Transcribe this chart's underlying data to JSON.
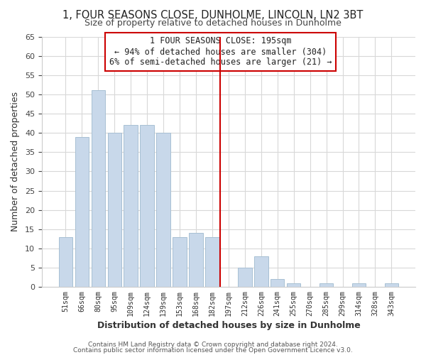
{
  "title": "1, FOUR SEASONS CLOSE, DUNHOLME, LINCOLN, LN2 3BT",
  "subtitle": "Size of property relative to detached houses in Dunholme",
  "xlabel": "Distribution of detached houses by size in Dunholme",
  "ylabel": "Number of detached properties",
  "bar_labels": [
    "51sqm",
    "66sqm",
    "80sqm",
    "95sqm",
    "109sqm",
    "124sqm",
    "139sqm",
    "153sqm",
    "168sqm",
    "182sqm",
    "197sqm",
    "212sqm",
    "226sqm",
    "241sqm",
    "255sqm",
    "270sqm",
    "285sqm",
    "299sqm",
    "314sqm",
    "328sqm",
    "343sqm"
  ],
  "bar_values": [
    13,
    39,
    51,
    40,
    42,
    42,
    40,
    13,
    14,
    13,
    0,
    5,
    8,
    2,
    1,
    0,
    1,
    0,
    1,
    0,
    1
  ],
  "bar_color": "#c8d8ea",
  "bar_edge_color": "#a8c0d4",
  "ylim": [
    0,
    65
  ],
  "yticks": [
    0,
    5,
    10,
    15,
    20,
    25,
    30,
    35,
    40,
    45,
    50,
    55,
    60,
    65
  ],
  "vline_index": 10,
  "vline_color": "#cc0000",
  "annotation_title": "1 FOUR SEASONS CLOSE: 195sqm",
  "annotation_line1": "← 94% of detached houses are smaller (304)",
  "annotation_line2": "6% of semi-detached houses are larger (21) →",
  "annotation_box_color": "#ffffff",
  "annotation_box_edge": "#cc0000",
  "footer1": "Contains HM Land Registry data © Crown copyright and database right 2024.",
  "footer2": "Contains public sector information licensed under the Open Government Licence v3.0.",
  "bg_color": "#ffffff",
  "grid_color": "#d8d8d8",
  "figsize": [
    6.0,
    5.0
  ],
  "dpi": 100
}
